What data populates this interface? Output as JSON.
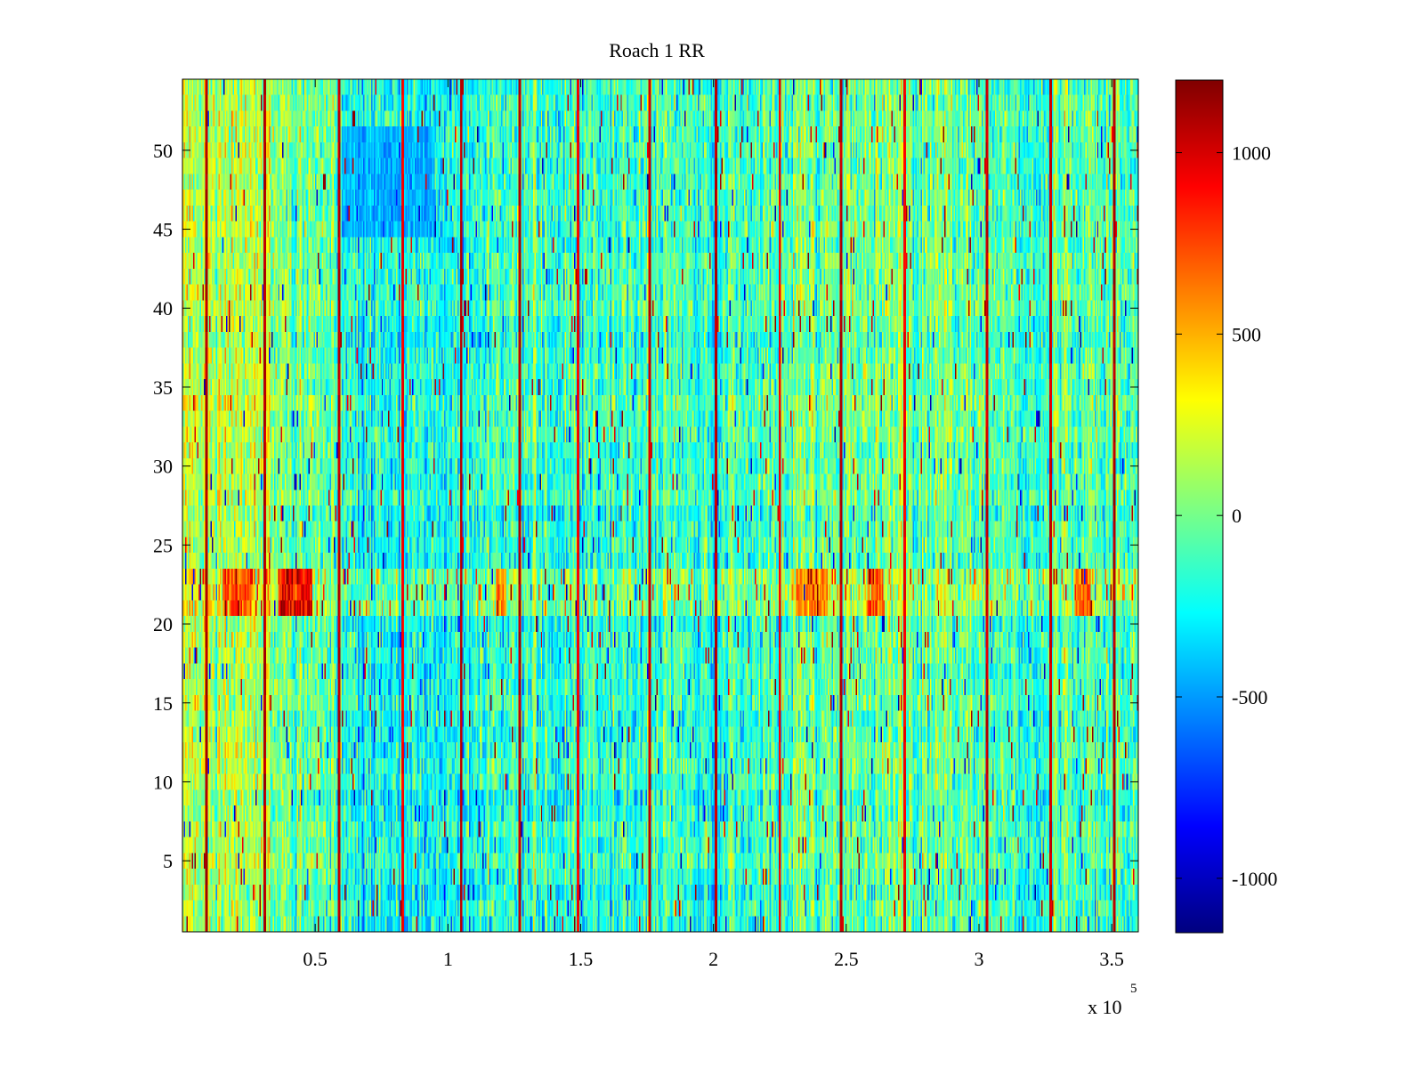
{
  "chart_data": {
    "type": "heatmap",
    "title": "Roach 1 RR",
    "xlabel": "",
    "ylabel": "",
    "x_exponent_label": "x 10",
    "x_exponent_power": "5",
    "xlim": [
      0,
      3.6
    ],
    "ylim": [
      0.5,
      54.5
    ],
    "x_ticks": [
      {
        "value": 0.5,
        "label": "0.5"
      },
      {
        "value": 1,
        "label": "1"
      },
      {
        "value": 1.5,
        "label": "1.5"
      },
      {
        "value": 2,
        "label": "2"
      },
      {
        "value": 2.5,
        "label": "2.5"
      },
      {
        "value": 3,
        "label": "3"
      },
      {
        "value": 3.5,
        "label": "3.5"
      }
    ],
    "y_ticks": [
      {
        "value": 5,
        "label": "5"
      },
      {
        "value": 10,
        "label": "10"
      },
      {
        "value": 15,
        "label": "15"
      },
      {
        "value": 20,
        "label": "20"
      },
      {
        "value": 25,
        "label": "25"
      },
      {
        "value": 30,
        "label": "30"
      },
      {
        "value": 35,
        "label": "35"
      },
      {
        "value": 40,
        "label": "40"
      },
      {
        "value": 45,
        "label": "45"
      },
      {
        "value": 50,
        "label": "50"
      }
    ],
    "colorbar": {
      "colormap": "jet",
      "clim": [
        -1150,
        1200
      ],
      "ticks": [
        {
          "value": 1000,
          "label": "1000"
        },
        {
          "value": 500,
          "label": "500"
        },
        {
          "value": 0,
          "label": "0"
        },
        {
          "value": -500,
          "label": "-500"
        },
        {
          "value": -1000,
          "label": "-1000"
        }
      ]
    },
    "grid": false,
    "n_rows": 54,
    "n_columns": 720,
    "baseline_value": -80,
    "row_offsets": [
      {
        "from": 1,
        "to": 20,
        "value": -40
      },
      {
        "from": 21,
        "to": 23,
        "value": 120
      },
      {
        "from": 36,
        "to": 37,
        "value": -10
      },
      {
        "from": 46,
        "to": 47,
        "value": 20
      }
    ],
    "column_region_offsets": [
      {
        "x_from": 0.0,
        "x_to": 0.33,
        "value": 220
      },
      {
        "x_from": 0.33,
        "x_to": 0.6,
        "value": 40
      },
      {
        "x_from": 0.6,
        "x_to": 1.0,
        "value": -140
      },
      {
        "x_from": 1.0,
        "x_to": 1.5,
        "value": -60
      },
      {
        "x_from": 1.5,
        "x_to": 2.3,
        "value": -40
      },
      {
        "x_from": 2.3,
        "x_to": 3.1,
        "value": 40
      },
      {
        "x_from": 3.1,
        "x_to": 3.6,
        "value": 0
      }
    ],
    "row_band_highlights": [
      {
        "row_from": 21,
        "row_to": 23,
        "x_from": 0.36,
        "x_to": 0.49,
        "value": 1150
      },
      {
        "row_from": 21,
        "row_to": 23,
        "x_from": 0.15,
        "x_to": 0.26,
        "value": 800
      },
      {
        "row_from": 21,
        "row_to": 23,
        "x_from": 2.58,
        "x_to": 2.64,
        "value": 900
      },
      {
        "row_from": 21,
        "row_to": 23,
        "x_from": 2.31,
        "x_to": 2.43,
        "value": 700
      },
      {
        "row_from": 21,
        "row_to": 23,
        "x_from": 3.36,
        "x_to": 3.42,
        "value": 800
      },
      {
        "row_from": 21,
        "row_to": 23,
        "x_from": 1.18,
        "x_to": 1.22,
        "value": 800
      },
      {
        "row_from": 45,
        "row_to": 51,
        "x_from": 0.6,
        "x_to": 0.95,
        "value": -500
      }
    ],
    "vertical_stripes": [
      {
        "x": 0.09,
        "value": 1180
      },
      {
        "x": 0.31,
        "value": 1150
      },
      {
        "x": 0.59,
        "value": 1150
      },
      {
        "x": 0.83,
        "value": 1000
      },
      {
        "x": 1.05,
        "value": 1150
      },
      {
        "x": 1.27,
        "value": 1150
      },
      {
        "x": 1.49,
        "value": 1000
      },
      {
        "x": 1.76,
        "value": 1100
      },
      {
        "x": 2.01,
        "value": 1150
      },
      {
        "x": 2.25,
        "value": 1000
      },
      {
        "x": 2.48,
        "value": 1150
      },
      {
        "x": 2.72,
        "value": 1000
      },
      {
        "x": 3.03,
        "value": 1100
      },
      {
        "x": 3.27,
        "value": 1100
      },
      {
        "x": 3.51,
        "value": 1180
      }
    ],
    "noise_amplitude": 330
  }
}
